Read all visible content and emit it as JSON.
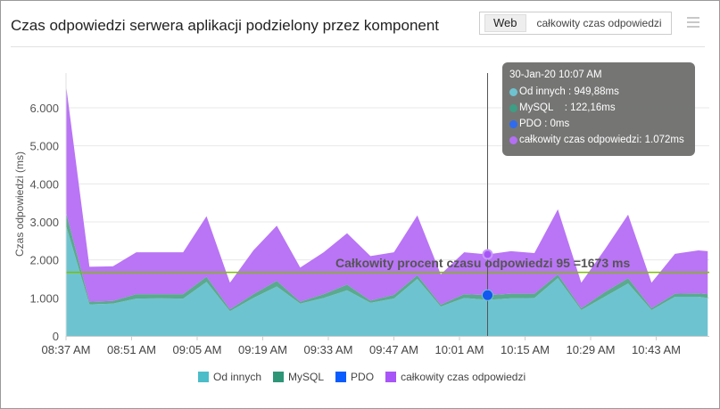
{
  "header": {
    "title": "Czas odpowiedzi serwera aplikacji podzielony przez komponent",
    "buttons": [
      "Web",
      "całkowity czas odpowiedzi"
    ],
    "menu_icon": "hamburger-icon"
  },
  "tooltip": {
    "time": "30-Jan-20 10:07 AM",
    "rows": [
      {
        "label": "Od innych",
        "value": ": 949,88ms",
        "color": "#6ec3d0"
      },
      {
        "label": "MySQL   ",
        "value": ": 122,16ms",
        "color": "#3c9e84"
      },
      {
        "label": "PDO",
        "value": ": 0ms",
        "color": "#2f6bf0"
      },
      {
        "label": "całkowity czas odpowiedzi",
        "value": ": 1.072ms",
        "color": "#b56ff5"
      }
    ]
  },
  "chart_data": {
    "type": "area",
    "stacked": true,
    "title": "",
    "xlabel": "",
    "ylabel": "Czas odpowiedzi (ms)",
    "ylim": [
      0,
      7000
    ],
    "yticks": [
      "0",
      "1.000",
      "2.000",
      "3.000",
      "4.000",
      "5.000",
      "6.000"
    ],
    "ytick_values": [
      0,
      1000,
      2000,
      3000,
      4000,
      5000,
      6000
    ],
    "xticks": [
      "08:37 AM",
      "08:51 AM",
      "09:05 AM",
      "09:19 AM",
      "09:33 AM",
      "09:47 AM",
      "10:01 AM",
      "10:15 AM",
      "10:29 AM",
      "10:43 AM"
    ],
    "x": [
      "08:37",
      "08:42",
      "08:47",
      "08:52",
      "08:57",
      "09:02",
      "09:07",
      "09:12",
      "09:17",
      "09:22",
      "09:27",
      "09:32",
      "09:37",
      "09:42",
      "09:47",
      "09:52",
      "09:57",
      "10:02",
      "10:07",
      "10:12",
      "10:17",
      "10:22",
      "10:27",
      "10:32",
      "10:37",
      "10:42",
      "10:47",
      "10:52",
      "10:54"
    ],
    "grid": true,
    "legend_position": "bottom",
    "series": [
      {
        "name": "Od innych",
        "color": "#6ec3d0",
        "legend_color": "#4bbdc9",
        "values": [
          2900,
          830,
          850,
          980,
          990,
          980,
          1420,
          650,
          1000,
          1300,
          850,
          1000,
          1200,
          870,
          985,
          1500,
          770,
          1000,
          950,
          990,
          1000,
          1520,
          680,
          1030,
          1380,
          680,
          1030,
          1030,
          1000
        ]
      },
      {
        "name": "MySQL",
        "color": "#5aaa8e",
        "legend_color": "#2e9677",
        "values": [
          350,
          70,
          70,
          120,
          110,
          120,
          140,
          50,
          100,
          150,
          50,
          100,
          150,
          60,
          95,
          100,
          50,
          100,
          122,
          120,
          110,
          100,
          50,
          120,
          140,
          50,
          80,
          90,
          100
        ]
      },
      {
        "name": "PDO",
        "color": "#2f6bf0",
        "legend_color": "#0b5cff",
        "values": [
          0,
          0,
          0,
          0,
          0,
          0,
          0,
          0,
          0,
          0,
          0,
          0,
          0,
          0,
          0,
          0,
          0,
          0,
          0,
          0,
          0,
          0,
          0,
          0,
          0,
          0,
          0,
          0,
          0
        ]
      },
      {
        "name": "całkowity czas odpowiedzi",
        "color": "#b975f5",
        "legend_color": "#a855f7",
        "values": [
          3350,
          920,
          910,
          1100,
          1100,
          1100,
          1590,
          700,
          1150,
          1450,
          900,
          1100,
          1350,
          1170,
          1120,
          1570,
          800,
          1100,
          1072,
          1120,
          1070,
          1710,
          670,
          1120,
          1670,
          670,
          1050,
          1130,
          1130
        ]
      }
    ],
    "reference_line": {
      "value": 1673,
      "label": "Całkowity procent czasu odpowiedzi  95 =1673 ms",
      "color": "#7cc000"
    },
    "crosshair_x": "10:07"
  }
}
